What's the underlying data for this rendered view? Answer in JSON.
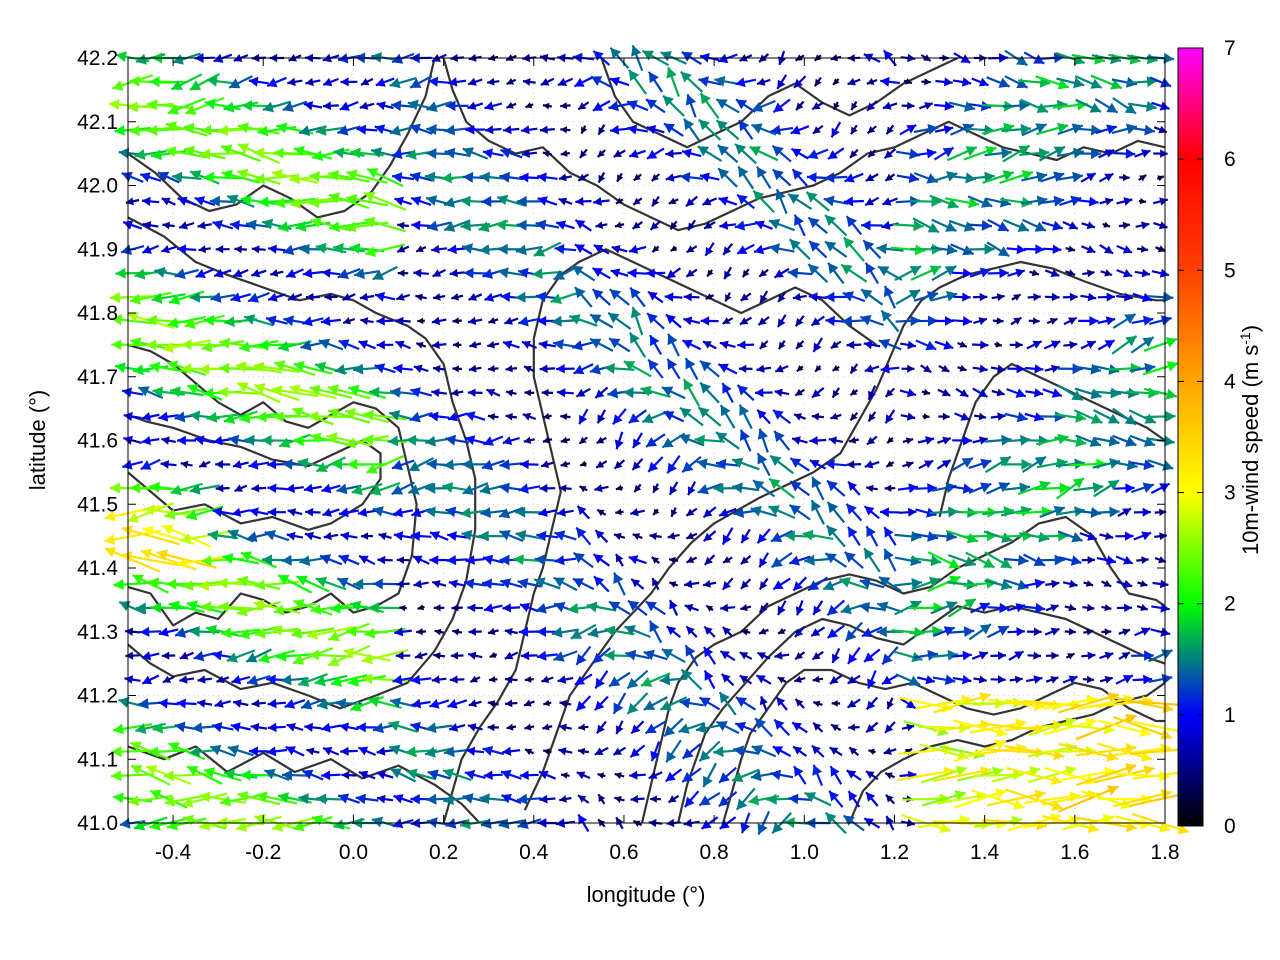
{
  "chart_data": {
    "type": "vector-field",
    "title": "",
    "xlabel": "longitude (°)",
    "ylabel": "latitude (°)",
    "colorbar_label_main": "10m-wind speed (m s",
    "colorbar_label_sup": "-1",
    "colorbar_label_end": ")",
    "xlim": [
      -0.5,
      1.8
    ],
    "ylim": [
      41.0,
      42.2
    ],
    "x_ticks": [
      {
        "value": -0.4,
        "label": "-0.4"
      },
      {
        "value": -0.2,
        "label": "-0.2"
      },
      {
        "value": 0.0,
        "label": "0.0"
      },
      {
        "value": 0.2,
        "label": "0.2"
      },
      {
        "value": 0.4,
        "label": "0.4"
      },
      {
        "value": 0.6,
        "label": "0.6"
      },
      {
        "value": 0.8,
        "label": "0.8"
      },
      {
        "value": 1.0,
        "label": "1.0"
      },
      {
        "value": 1.2,
        "label": "1.2"
      },
      {
        "value": 1.4,
        "label": "1.4"
      },
      {
        "value": 1.6,
        "label": "1.6"
      },
      {
        "value": 1.8,
        "label": "1.8"
      }
    ],
    "y_ticks": [
      {
        "value": 41.0,
        "label": "41.0"
      },
      {
        "value": 41.1,
        "label": "41.1"
      },
      {
        "value": 41.2,
        "label": "41.2"
      },
      {
        "value": 41.3,
        "label": "41.3"
      },
      {
        "value": 41.4,
        "label": "41.4"
      },
      {
        "value": 41.5,
        "label": "41.5"
      },
      {
        "value": 41.6,
        "label": "41.6"
      },
      {
        "value": 41.7,
        "label": "41.7"
      },
      {
        "value": 41.8,
        "label": "41.8"
      },
      {
        "value": 41.9,
        "label": "41.9"
      },
      {
        "value": 42.0,
        "label": "42.0"
      },
      {
        "value": 42.1,
        "label": "42.1"
      },
      {
        "value": 42.2,
        "label": "42.2"
      }
    ],
    "colorbar_range": [
      0,
      7
    ],
    "colorbar_ticks": [
      {
        "value": 0,
        "label": "0"
      },
      {
        "value": 1,
        "label": "1"
      },
      {
        "value": 2,
        "label": "2"
      },
      {
        "value": 3,
        "label": "3"
      },
      {
        "value": 4,
        "label": "4"
      },
      {
        "value": 5,
        "label": "5"
      },
      {
        "value": 6,
        "label": "6"
      },
      {
        "value": 7,
        "label": "7"
      }
    ],
    "colormap": [
      {
        "value": 0,
        "color": "#000000"
      },
      {
        "value": 1,
        "color": "#0000ff"
      },
      {
        "value": 2,
        "color": "#00ff00"
      },
      {
        "value": 3,
        "color": "#ffff00"
      },
      {
        "value": 4,
        "color": "#ffa500"
      },
      {
        "value": 5,
        "color": "#ff4000"
      },
      {
        "value": 6,
        "color": "#ff0000"
      },
      {
        "value": 7,
        "color": "#ff00ff"
      }
    ],
    "grid": true,
    "contour_color": "#333333",
    "contours": [
      [
        [
          -0.5,
          41.37
        ],
        [
          -0.45,
          41.36
        ],
        [
          -0.4,
          41.31
        ],
        [
          -0.35,
          41.33
        ],
        [
          -0.3,
          41.32
        ],
        [
          -0.25,
          41.36
        ],
        [
          -0.2,
          41.35
        ],
        [
          -0.15,
          41.33
        ],
        [
          -0.1,
          41.34
        ],
        [
          -0.05,
          41.36
        ],
        [
          0.0,
          41.33
        ],
        [
          0.05,
          41.34
        ],
        [
          0.1,
          41.36
        ],
        [
          0.13,
          41.42
        ],
        [
          0.14,
          41.5
        ],
        [
          0.12,
          41.56
        ],
        [
          0.1,
          41.62
        ],
        [
          0.05,
          41.65
        ],
        [
          0.0,
          41.66
        ],
        [
          -0.05,
          41.64
        ],
        [
          -0.1,
          41.62
        ],
        [
          -0.15,
          41.63
        ],
        [
          -0.2,
          41.66
        ],
        [
          -0.25,
          41.64
        ],
        [
          -0.3,
          41.66
        ],
        [
          -0.35,
          41.69
        ],
        [
          -0.4,
          41.72
        ],
        [
          -0.45,
          41.74
        ],
        [
          -0.5,
          41.75
        ]
      ],
      [
        [
          -0.5,
          41.28
        ],
        [
          -0.45,
          41.25
        ],
        [
          -0.4,
          41.23
        ],
        [
          -0.33,
          41.24
        ],
        [
          -0.25,
          41.21
        ],
        [
          -0.18,
          41.22
        ],
        [
          -0.1,
          41.2
        ],
        [
          -0.03,
          41.18
        ],
        [
          0.05,
          41.2
        ],
        [
          0.12,
          41.22
        ],
        [
          0.18,
          41.27
        ],
        [
          0.22,
          41.32
        ],
        [
          0.25,
          41.38
        ],
        [
          0.27,
          41.46
        ],
        [
          0.27,
          41.54
        ],
        [
          0.25,
          41.6
        ],
        [
          0.22,
          41.66
        ],
        [
          0.2,
          41.72
        ],
        [
          0.16,
          41.76
        ],
        [
          0.12,
          41.78
        ],
        [
          0.05,
          41.8
        ],
        [
          0.0,
          41.82
        ],
        [
          -0.05,
          41.83
        ],
        [
          -0.12,
          41.82
        ],
        [
          -0.2,
          41.84
        ],
        [
          -0.28,
          41.86
        ],
        [
          -0.35,
          41.88
        ],
        [
          -0.42,
          41.92
        ],
        [
          -0.5,
          41.95
        ]
      ],
      [
        [
          -0.5,
          41.12
        ],
        [
          -0.42,
          41.1
        ],
        [
          -0.35,
          41.12
        ],
        [
          -0.28,
          41.08
        ],
        [
          -0.2,
          41.11
        ],
        [
          -0.13,
          41.08
        ],
        [
          -0.05,
          41.1
        ],
        [
          0.02,
          41.07
        ],
        [
          0.1,
          41.09
        ],
        [
          0.18,
          41.06
        ],
        [
          0.24,
          41.03
        ],
        [
          0.28,
          41.0
        ]
      ],
      [
        [
          0.38,
          41.02
        ],
        [
          0.42,
          41.08
        ],
        [
          0.45,
          41.14
        ],
        [
          0.48,
          41.2
        ],
        [
          0.52,
          41.24
        ],
        [
          0.55,
          41.27
        ],
        [
          0.58,
          41.3
        ],
        [
          0.62,
          41.33
        ],
        [
          0.66,
          41.36
        ],
        [
          0.7,
          41.4
        ],
        [
          0.75,
          41.44
        ],
        [
          0.8,
          41.47
        ],
        [
          0.85,
          41.49
        ],
        [
          0.9,
          41.51
        ],
        [
          0.96,
          41.53
        ],
        [
          1.02,
          41.55
        ],
        [
          1.08,
          41.58
        ],
        [
          1.12,
          41.63
        ],
        [
          1.16,
          41.68
        ],
        [
          1.19,
          41.73
        ],
        [
          1.22,
          41.78
        ],
        [
          1.26,
          41.82
        ],
        [
          1.3,
          41.84
        ],
        [
          1.36,
          41.86
        ],
        [
          1.42,
          41.87
        ],
        [
          1.48,
          41.88
        ],
        [
          1.55,
          41.87
        ],
        [
          1.62,
          41.85
        ],
        [
          1.7,
          41.83
        ],
        [
          1.78,
          41.82
        ],
        [
          1.8,
          41.82
        ]
      ],
      [
        [
          0.64,
          41.0
        ],
        [
          0.66,
          41.06
        ],
        [
          0.68,
          41.12
        ],
        [
          0.7,
          41.18
        ],
        [
          0.72,
          41.22
        ],
        [
          0.76,
          41.26
        ],
        [
          0.8,
          41.28
        ],
        [
          0.86,
          41.3
        ],
        [
          0.92,
          41.34
        ],
        [
          0.98,
          41.36
        ],
        [
          1.04,
          41.38
        ],
        [
          1.1,
          41.39
        ],
        [
          1.16,
          41.38
        ],
        [
          1.22,
          41.36
        ],
        [
          1.28,
          41.37
        ],
        [
          1.34,
          41.4
        ],
        [
          1.4,
          41.42
        ],
        [
          1.46,
          41.44
        ],
        [
          1.52,
          41.47
        ],
        [
          1.58,
          41.48
        ],
        [
          1.64,
          41.45
        ],
        [
          1.68,
          41.4
        ],
        [
          1.72,
          41.36
        ],
        [
          1.78,
          41.35
        ],
        [
          1.8,
          41.34
        ]
      ],
      [
        [
          0.72,
          41.0
        ],
        [
          0.74,
          41.06
        ],
        [
          0.76,
          41.1
        ],
        [
          0.78,
          41.14
        ],
        [
          0.82,
          41.18
        ],
        [
          0.87,
          41.22
        ],
        [
          0.92,
          41.26
        ],
        [
          0.98,
          41.3
        ],
        [
          1.04,
          41.32
        ],
        [
          1.1,
          41.31
        ],
        [
          1.16,
          41.29
        ],
        [
          1.22,
          41.28
        ],
        [
          1.28,
          41.31
        ],
        [
          1.34,
          41.34
        ],
        [
          1.4,
          41.33
        ],
        [
          1.46,
          41.34
        ],
        [
          1.52,
          41.33
        ],
        [
          1.58,
          41.32
        ],
        [
          1.64,
          41.3
        ],
        [
          1.7,
          41.28
        ],
        [
          1.76,
          41.26
        ],
        [
          1.8,
          41.25
        ]
      ],
      [
        [
          0.82,
          41.0
        ],
        [
          0.84,
          41.05
        ],
        [
          0.86,
          41.1
        ],
        [
          0.88,
          41.14
        ],
        [
          0.92,
          41.18
        ],
        [
          0.96,
          41.22
        ],
        [
          1.0,
          41.24
        ],
        [
          1.06,
          41.24
        ],
        [
          1.12,
          41.22
        ],
        [
          1.18,
          41.21
        ],
        [
          1.24,
          41.22
        ],
        [
          1.3,
          41.2
        ],
        [
          1.36,
          41.18
        ],
        [
          1.42,
          41.17
        ],
        [
          1.48,
          41.18
        ],
        [
          1.54,
          41.2
        ],
        [
          1.6,
          41.22
        ],
        [
          1.66,
          41.21
        ],
        [
          1.72,
          41.18
        ],
        [
          1.78,
          41.16
        ],
        [
          1.8,
          41.16
        ]
      ],
      [
        [
          1.1,
          41.0
        ],
        [
          1.13,
          41.05
        ],
        [
          1.17,
          41.08
        ],
        [
          1.22,
          41.1
        ],
        [
          1.28,
          41.12
        ],
        [
          1.34,
          41.13
        ],
        [
          1.4,
          41.12
        ],
        [
          1.46,
          41.13
        ],
        [
          1.52,
          41.15
        ],
        [
          1.58,
          41.16
        ],
        [
          1.64,
          41.17
        ],
        [
          1.7,
          41.19
        ],
        [
          1.76,
          41.2
        ],
        [
          1.8,
          41.22
        ]
      ],
      [
        [
          0.2,
          42.2
        ],
        [
          0.22,
          42.15
        ],
        [
          0.25,
          42.1
        ],
        [
          0.3,
          42.07
        ],
        [
          0.36,
          42.05
        ],
        [
          0.42,
          42.06
        ],
        [
          0.48,
          42.02
        ],
        [
          0.54,
          42.0
        ],
        [
          0.6,
          41.97
        ],
        [
          0.66,
          41.95
        ],
        [
          0.72,
          41.93
        ],
        [
          0.78,
          41.94
        ],
        [
          0.84,
          41.96
        ],
        [
          0.9,
          41.98
        ],
        [
          0.96,
          41.99
        ],
        [
          1.02,
          42.0
        ],
        [
          1.08,
          42.02
        ],
        [
          1.14,
          42.05
        ],
        [
          1.2,
          42.06
        ],
        [
          1.26,
          42.08
        ],
        [
          1.32,
          42.1
        ],
        [
          1.38,
          42.08
        ],
        [
          1.44,
          42.06
        ],
        [
          1.5,
          42.05
        ],
        [
          1.56,
          42.04
        ],
        [
          1.62,
          42.06
        ],
        [
          1.68,
          42.05
        ],
        [
          1.74,
          42.07
        ],
        [
          1.8,
          42.06
        ]
      ],
      [
        [
          0.55,
          42.2
        ],
        [
          0.58,
          42.14
        ],
        [
          0.62,
          42.1
        ],
        [
          0.68,
          42.08
        ],
        [
          0.74,
          42.06
        ],
        [
          0.8,
          42.08
        ],
        [
          0.86,
          42.1
        ],
        [
          0.92,
          42.14
        ],
        [
          0.98,
          42.16
        ],
        [
          1.04,
          42.13
        ],
        [
          1.1,
          42.11
        ],
        [
          1.16,
          42.13
        ],
        [
          1.22,
          42.16
        ],
        [
          1.28,
          42.18
        ],
        [
          1.34,
          42.2
        ]
      ],
      [
        [
          0.2,
          41.0
        ],
        [
          0.22,
          41.05
        ],
        [
          0.24,
          41.1
        ],
        [
          0.28,
          41.15
        ],
        [
          0.32,
          41.19
        ],
        [
          0.36,
          41.24
        ],
        [
          0.38,
          41.3
        ],
        [
          0.4,
          41.36
        ],
        [
          0.42,
          41.4
        ],
        [
          0.44,
          41.46
        ],
        [
          0.46,
          41.52
        ],
        [
          0.44,
          41.58
        ],
        [
          0.42,
          41.64
        ],
        [
          0.4,
          41.7
        ],
        [
          0.4,
          41.76
        ],
        [
          0.42,
          41.82
        ],
        [
          0.46,
          41.86
        ],
        [
          0.5,
          41.88
        ],
        [
          0.56,
          41.9
        ],
        [
          0.62,
          41.88
        ],
        [
          0.68,
          41.86
        ],
        [
          0.74,
          41.84
        ],
        [
          0.8,
          41.82
        ],
        [
          0.86,
          41.8
        ],
        [
          0.92,
          41.82
        ],
        [
          0.98,
          41.84
        ],
        [
          1.04,
          41.82
        ],
        [
          1.1,
          41.78
        ],
        [
          1.16,
          41.75
        ]
      ],
      [
        [
          -0.5,
          41.55
        ],
        [
          -0.45,
          41.52
        ],
        [
          -0.4,
          41.49
        ],
        [
          -0.33,
          41.5
        ],
        [
          -0.25,
          41.47
        ],
        [
          -0.18,
          41.48
        ],
        [
          -0.1,
          41.46
        ],
        [
          -0.05,
          41.47
        ],
        [
          0.02,
          41.5
        ],
        [
          0.06,
          41.54
        ],
        [
          0.06,
          41.58
        ],
        [
          0.02,
          41.6
        ],
        [
          -0.04,
          41.58
        ],
        [
          -0.1,
          41.56
        ],
        [
          -0.18,
          41.57
        ],
        [
          -0.25,
          41.59
        ],
        [
          -0.32,
          41.6
        ],
        [
          -0.4,
          41.62
        ],
        [
          -0.46,
          41.63
        ],
        [
          -0.5,
          41.64
        ]
      ],
      [
        [
          -0.5,
          42.05
        ],
        [
          -0.44,
          42.02
        ],
        [
          -0.38,
          41.98
        ],
        [
          -0.32,
          41.96
        ],
        [
          -0.26,
          41.97
        ],
        [
          -0.2,
          42.0
        ],
        [
          -0.14,
          41.98
        ],
        [
          -0.08,
          41.95
        ],
        [
          -0.02,
          41.96
        ],
        [
          0.04,
          41.99
        ],
        [
          0.08,
          42.03
        ],
        [
          0.12,
          42.08
        ],
        [
          0.16,
          42.14
        ],
        [
          0.18,
          42.2
        ]
      ],
      [
        [
          1.3,
          41.48
        ],
        [
          1.32,
          41.54
        ],
        [
          1.35,
          41.6
        ],
        [
          1.38,
          41.66
        ],
        [
          1.42,
          41.7
        ],
        [
          1.46,
          41.72
        ],
        [
          1.52,
          41.7
        ],
        [
          1.58,
          41.68
        ],
        [
          1.64,
          41.66
        ],
        [
          1.7,
          41.64
        ],
        [
          1.76,
          41.62
        ],
        [
          1.8,
          41.6
        ]
      ]
    ],
    "vectors_note": "",
    "vector_grid": {
      "x0": -0.5,
      "dx": 0.04,
      "nx": 58,
      "y0": 41.0,
      "dy": 0.0375,
      "ny": 33
    },
    "vectors": []
  }
}
